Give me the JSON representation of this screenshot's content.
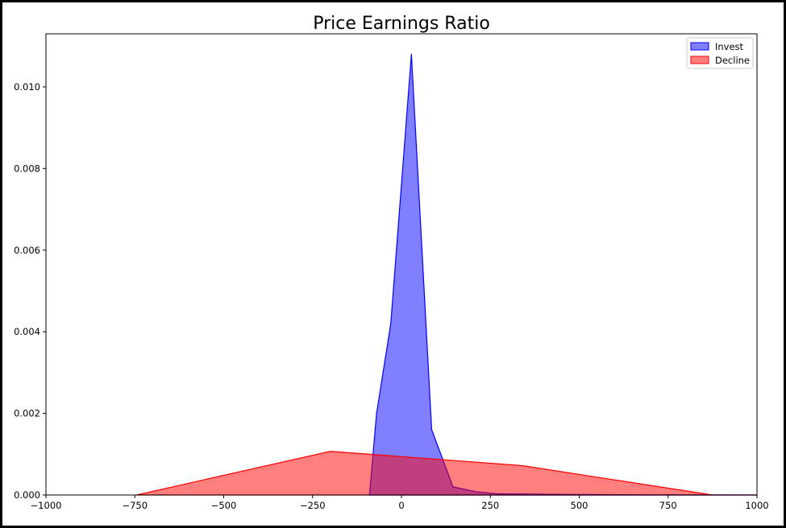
{
  "chart_data": {
    "type": "area",
    "title": "Price Earnings Ratio",
    "xlabel": "",
    "ylabel": "",
    "xlim": [
      -1000,
      1000
    ],
    "ylim": [
      0,
      0.0113
    ],
    "x_ticks": [
      -1000,
      -750,
      -500,
      -250,
      0,
      250,
      500,
      750,
      1000
    ],
    "x_tick_labels": [
      "−1000",
      "−750",
      "−500",
      "−250",
      "0",
      "250",
      "500",
      "750",
      "1000"
    ],
    "y_ticks": [
      0,
      0.002,
      0.004,
      0.006,
      0.008,
      0.01
    ],
    "y_tick_labels": [
      "0.000",
      "0.002",
      "0.004",
      "0.006",
      "0.008",
      "0.010"
    ],
    "grid": false,
    "legend_position": "top-right",
    "series": [
      {
        "name": "Invest",
        "color": "#0000ff",
        "points": [
          [
            -90,
            0
          ],
          [
            -70,
            0.002
          ],
          [
            -30,
            0.0042
          ],
          [
            28,
            0.0108
          ],
          [
            85,
            0.0016
          ],
          [
            145,
            0.0002
          ],
          [
            210,
            8e-05
          ],
          [
            270,
            3e-05
          ],
          [
            450,
            1.5e-05
          ],
          [
            700,
            5e-06
          ],
          [
            1000,
            0
          ]
        ]
      },
      {
        "name": "Decline",
        "color": "#ff0000",
        "points": [
          [
            -745,
            0
          ],
          [
            -200,
            0.00107
          ],
          [
            340,
            0.00072
          ],
          [
            875,
            0
          ],
          [
            1000,
            0
          ]
        ]
      }
    ]
  }
}
